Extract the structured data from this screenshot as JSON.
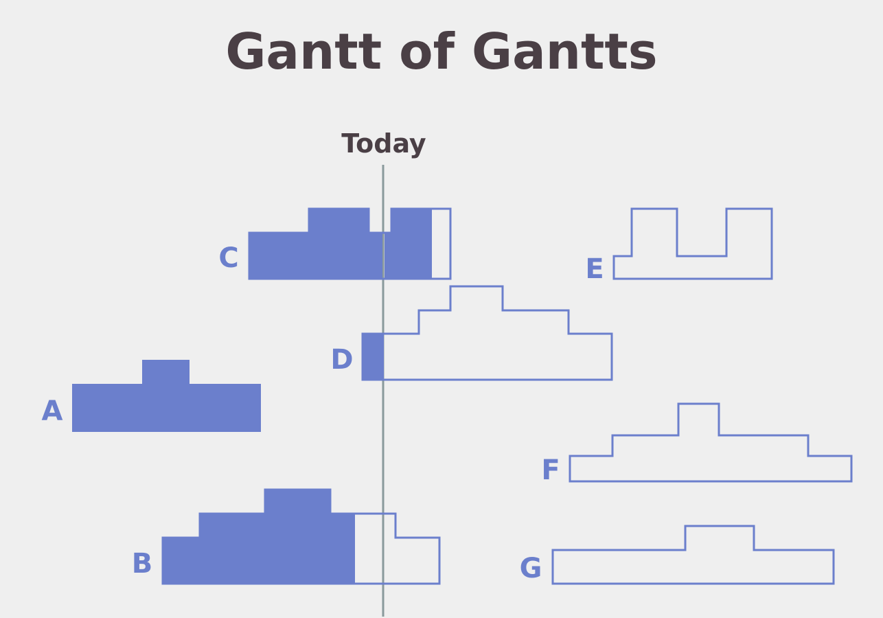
{
  "title": "Gantt of Gantts",
  "today_label": "Today",
  "colors": {
    "accent": "#6b7fcc",
    "text": "#4a3f45",
    "today_line": "#8a9a9c",
    "background": "#efefef"
  },
  "projects": [
    {
      "id": "A",
      "label": "A"
    },
    {
      "id": "B",
      "label": "B"
    },
    {
      "id": "C",
      "label": "C"
    },
    {
      "id": "D",
      "label": "D"
    },
    {
      "id": "E",
      "label": "E"
    },
    {
      "id": "F",
      "label": "F"
    },
    {
      "id": "G",
      "label": "G"
    }
  ]
}
